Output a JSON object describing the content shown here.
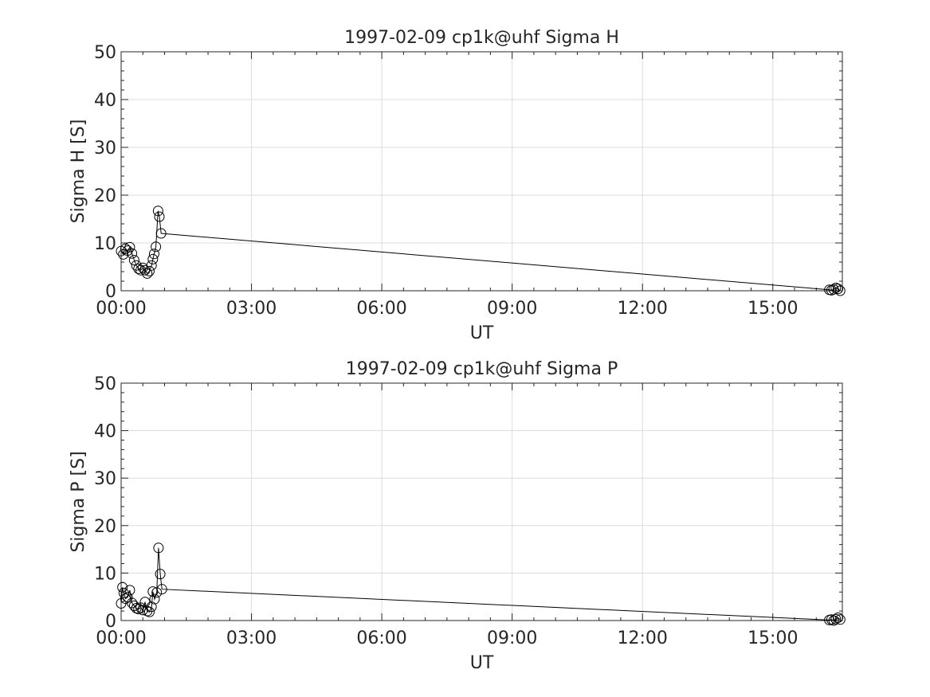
{
  "chart_data": [
    {
      "type": "line",
      "title": "1997-02-09  cp1k@uhf Sigma H",
      "xlabel": "UT",
      "ylabel": "Sigma H [S]",
      "x_unit": "hours UT",
      "xlim": [
        0,
        16.6
      ],
      "ylim": [
        0,
        50
      ],
      "xticks": [
        0,
        3,
        6,
        9,
        12,
        15
      ],
      "xtick_labels": [
        "00:00",
        "03:00",
        "06:00",
        "09:00",
        "12:00",
        "15:00"
      ],
      "yticks": [
        0,
        10,
        20,
        30,
        40,
        50
      ],
      "ytick_labels": [
        "0",
        "10",
        "20",
        "30",
        "40",
        "50"
      ],
      "grid": true,
      "marker": "open-circle",
      "series": [
        {
          "x": [
            0.0,
            0.05,
            0.1,
            0.15,
            0.2,
            0.25,
            0.3,
            0.35,
            0.4,
            0.45,
            0.5,
            0.55,
            0.6,
            0.65,
            0.7,
            0.73,
            0.76,
            0.8,
            0.85,
            0.88,
            0.92,
            16.3,
            16.35,
            16.4,
            16.45,
            16.5,
            16.55
          ],
          "y": [
            8.3,
            7.6,
            8.8,
            8.4,
            9.1,
            7.8,
            6.4,
            5.3,
            4.6,
            4.3,
            4.8,
            4.3,
            3.6,
            4.1,
            5.3,
            6.6,
            7.7,
            9.2,
            16.7,
            15.5,
            12.0,
            0.2,
            0.1,
            0.3,
            0.6,
            0.4,
            0.0
          ]
        }
      ]
    },
    {
      "type": "line",
      "title": "1997-02-09  cp1k@uhf Sigma P",
      "xlabel": "UT",
      "ylabel": "Sigma P [S]",
      "x_unit": "hours UT",
      "xlim": [
        0,
        16.6
      ],
      "ylim": [
        0,
        50
      ],
      "xticks": [
        0,
        3,
        6,
        9,
        12,
        15
      ],
      "xtick_labels": [
        "00:00",
        "03:00",
        "06:00",
        "09:00",
        "12:00",
        "15:00"
      ],
      "yticks": [
        0,
        10,
        20,
        30,
        40,
        50
      ],
      "ytick_labels": [
        "0",
        "10",
        "20",
        "30",
        "40",
        "50"
      ],
      "grid": true,
      "marker": "open-circle",
      "series": [
        {
          "x": [
            0.0,
            0.03,
            0.06,
            0.1,
            0.15,
            0.2,
            0.25,
            0.3,
            0.35,
            0.4,
            0.45,
            0.5,
            0.55,
            0.6,
            0.65,
            0.7,
            0.73,
            0.77,
            0.82,
            0.86,
            0.9,
            0.94,
            16.3,
            16.35,
            16.4,
            16.45,
            16.5,
            16.55
          ],
          "y": [
            3.6,
            7.0,
            5.8,
            4.6,
            4.9,
            6.4,
            3.7,
            3.1,
            2.6,
            2.4,
            2.7,
            2.2,
            3.9,
            2.0,
            1.8,
            2.9,
            6.1,
            4.5,
            5.9,
            15.3,
            9.8,
            6.6,
            0.1,
            0.2,
            0.0,
            0.3,
            0.6,
            0.2
          ]
        }
      ]
    }
  ]
}
